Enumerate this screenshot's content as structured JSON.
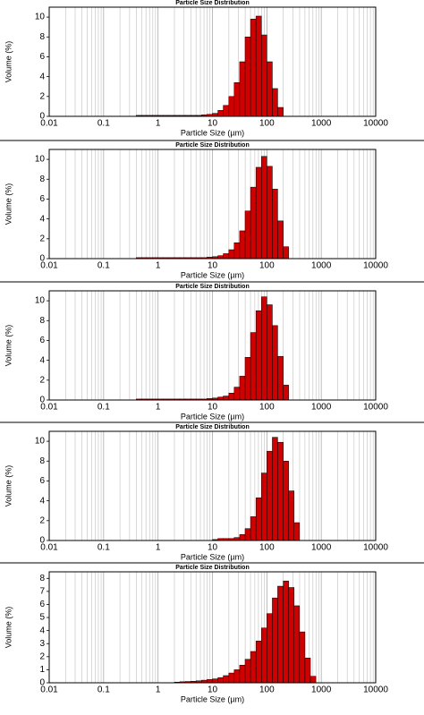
{
  "chart_data": [
    {
      "type": "histogram",
      "title": "Particle Size Distribution",
      "xlabel": "Particle Size (µm)",
      "ylabel": "Volume (%)",
      "xscale": "log",
      "color": "#d00000",
      "grid": true,
      "xlim": [
        0.01,
        10000
      ],
      "xticks": [
        0.01,
        0.1,
        1,
        10,
        100,
        1000,
        10000
      ],
      "ylim": [
        0,
        11
      ],
      "yticks": [
        0,
        2,
        4,
        6,
        8,
        10
      ],
      "bins": [
        0.398,
        0.501,
        0.631,
        0.794,
        1,
        1.26,
        1.58,
        2,
        2.51,
        3.16,
        3.98,
        5.01,
        6.31,
        7.94,
        10,
        12.6,
        15.8,
        20,
        25.1,
        31.6,
        39.8,
        50.1,
        63.1,
        79.4,
        100,
        126,
        158,
        200
      ],
      "values": [
        0.1,
        0.1,
        0.1,
        0.1,
        0.1,
        0.1,
        0.1,
        0.1,
        0.1,
        0.1,
        0.1,
        0.1,
        0.15,
        0.2,
        0.3,
        0.6,
        1.1,
        2,
        3.4,
        5.5,
        8,
        9.8,
        10.1,
        8.2,
        5.5,
        2.8,
        0.9
      ]
    },
    {
      "type": "histogram",
      "title": "Particle Size Distribution",
      "xlabel": "Particle Size (µm)",
      "ylabel": "Volume (%)",
      "xscale": "log",
      "color": "#d00000",
      "grid": true,
      "xlim": [
        0.01,
        10000
      ],
      "xticks": [
        0.01,
        0.1,
        1,
        10,
        100,
        1000,
        10000
      ],
      "ylim": [
        0,
        11
      ],
      "yticks": [
        0,
        2,
        4,
        6,
        8,
        10
      ],
      "bins": [
        0.398,
        0.501,
        0.631,
        0.794,
        1,
        1.26,
        1.58,
        2,
        2.51,
        3.16,
        3.98,
        5.01,
        6.31,
        7.94,
        10,
        12.6,
        15.8,
        20,
        25.1,
        31.6,
        39.8,
        50.1,
        63.1,
        79.4,
        100,
        126,
        158,
        200,
        251
      ],
      "values": [
        0.1,
        0.1,
        0.1,
        0.1,
        0.1,
        0.1,
        0.1,
        0.1,
        0.1,
        0.1,
        0.1,
        0.1,
        0.1,
        0.15,
        0.2,
        0.3,
        0.5,
        0.9,
        1.6,
        2.8,
        4.8,
        7.2,
        9.2,
        10.3,
        9.3,
        7,
        3.8,
        1.2
      ]
    },
    {
      "type": "histogram",
      "title": "Particle Size Distribution",
      "xlabel": "Particle Size (µm)",
      "ylabel": "Volume (%)",
      "xscale": "log",
      "color": "#d00000",
      "grid": true,
      "xlim": [
        0.01,
        10000
      ],
      "xticks": [
        0.01,
        0.1,
        1,
        10,
        100,
        1000,
        10000
      ],
      "ylim": [
        0,
        11
      ],
      "yticks": [
        0,
        2,
        4,
        6,
        8,
        10
      ],
      "bins": [
        0.398,
        0.501,
        0.631,
        0.794,
        1,
        1.26,
        1.58,
        2,
        2.51,
        3.16,
        3.98,
        5.01,
        6.31,
        7.94,
        10,
        12.6,
        15.8,
        20,
        25.1,
        31.6,
        39.8,
        50.1,
        63.1,
        79.4,
        100,
        126,
        158,
        200,
        251
      ],
      "values": [
        0.1,
        0.1,
        0.1,
        0.1,
        0.1,
        0.1,
        0.1,
        0.1,
        0.1,
        0.1,
        0.1,
        0.1,
        0.1,
        0.15,
        0.2,
        0.3,
        0.4,
        0.7,
        1.3,
        2.4,
        4.3,
        6.8,
        9,
        10.4,
        9.6,
        7.5,
        4.4,
        1.5
      ]
    },
    {
      "type": "histogram",
      "title": "Particle Size Distribution",
      "xlabel": "Particle Size (µm)",
      "ylabel": "Volume (%)",
      "xscale": "log",
      "color": "#d00000",
      "grid": true,
      "xlim": [
        0.01,
        10000
      ],
      "xticks": [
        0.01,
        0.1,
        1,
        10,
        100,
        1000,
        10000
      ],
      "ylim": [
        0,
        11
      ],
      "yticks": [
        0,
        2,
        4,
        6,
        8,
        10
      ],
      "bins": [
        10,
        12.6,
        15.8,
        20,
        25.1,
        31.6,
        39.8,
        50.1,
        63.1,
        79.4,
        100,
        126,
        158,
        200,
        251,
        316,
        398
      ],
      "values": [
        0.1,
        0.2,
        0.2,
        0.2,
        0.3,
        0.6,
        1.2,
        2.4,
        4.3,
        6.8,
        9,
        10.4,
        9.9,
        8,
        5,
        1.8
      ]
    },
    {
      "type": "histogram",
      "title": "Particle Size Distribution",
      "xlabel": "Particle Size (µm)",
      "ylabel": "Volume (%)",
      "xscale": "log",
      "color": "#d00000",
      "grid": true,
      "xlim": [
        0.01,
        10000
      ],
      "xticks": [
        0.01,
        0.1,
        1,
        10,
        100,
        1000,
        10000
      ],
      "ylim": [
        0,
        8.5
      ],
      "yticks": [
        0,
        1,
        2,
        3,
        4,
        5,
        6,
        7,
        8
      ],
      "bins": [
        2,
        2.51,
        3.16,
        3.98,
        5.01,
        6.31,
        7.94,
        10,
        12.6,
        15.8,
        20,
        25.1,
        31.6,
        39.8,
        50.1,
        63.1,
        79.4,
        100,
        126,
        158,
        200,
        251,
        316,
        398,
        501,
        631,
        794
      ],
      "values": [
        0.05,
        0.08,
        0.1,
        0.12,
        0.15,
        0.2,
        0.25,
        0.3,
        0.4,
        0.55,
        0.75,
        1,
        1.35,
        1.8,
        2.4,
        3.2,
        4.2,
        5.3,
        6.5,
        7.4,
        7.8,
        7.3,
        5.9,
        3.9,
        1.9,
        0.5
      ]
    }
  ]
}
